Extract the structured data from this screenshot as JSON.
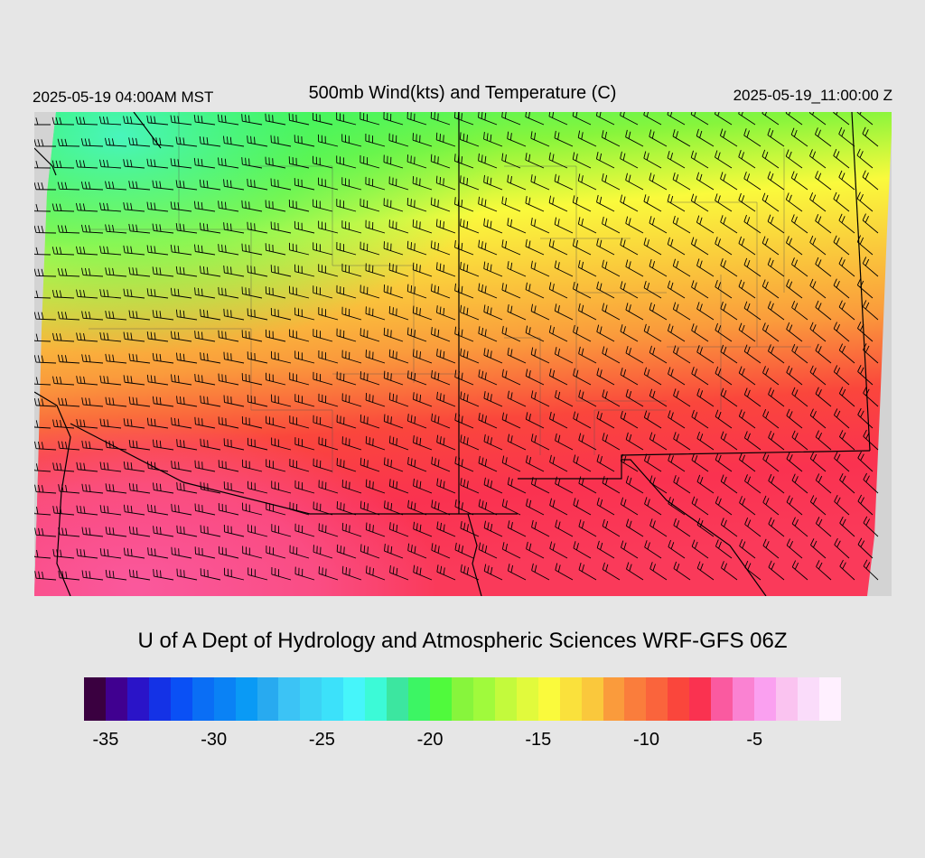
{
  "header": {
    "left_time": "2025-05-19 04:00AM MST",
    "title": "500mb Wind(kts) and Temperature (C)",
    "right_time": "2025-05-19_11:00:00 Z"
  },
  "credit": "U of A Dept of Hydrology and Atmospheric Sciences WRF-GFS 06Z",
  "colorbar": {
    "colors": [
      "#3a0040",
      "#400090",
      "#2a14c8",
      "#1432e6",
      "#0a50f5",
      "#0a6ef5",
      "#0a82f5",
      "#0a9af5",
      "#28aaf0",
      "#3cc3f5",
      "#3cd2f5",
      "#3ce1fa",
      "#46f5fa",
      "#3cfad7",
      "#3ce6a0",
      "#3cf564",
      "#50fa3c",
      "#87f53c",
      "#a0fa3c",
      "#c3fa3c",
      "#e1fa3c",
      "#fafa3c",
      "#fae13c",
      "#fac83c",
      "#fa9b3c",
      "#fa7d3c",
      "#fa643c",
      "#fa463c",
      "#fa3250",
      "#fa5aa0",
      "#fa82d2",
      "#faa0f0",
      "#fac3f0",
      "#fadcfa",
      "#fff0ff"
    ],
    "tick_labels": [
      {
        "text": "-35",
        "value": -35
      },
      {
        "text": "-30",
        "value": -30
      },
      {
        "text": "-25",
        "value": -25
      },
      {
        "text": "-20",
        "value": -20
      },
      {
        "text": "-15",
        "value": -15
      },
      {
        "text": "-10",
        "value": -10
      },
      {
        "text": "-5",
        "value": -5
      }
    ],
    "range": [
      -36,
      -1
    ]
  },
  "map": {
    "variable": "temperature_c_500mb",
    "wind_units": "kts"
  }
}
